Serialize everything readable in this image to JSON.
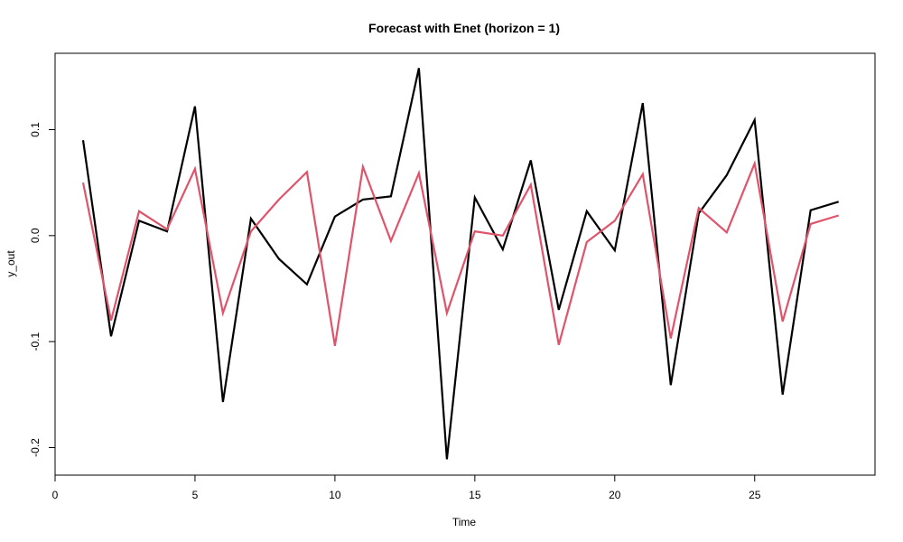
{
  "chart_data": {
    "type": "line",
    "title": "Forecast with Enet (horizon = 1)",
    "xlabel": "Time",
    "ylabel": "y_out",
    "xlim": [
      0,
      29.3
    ],
    "ylim": [
      -0.226,
      0.172
    ],
    "x_ticks": [
      0,
      5,
      10,
      15,
      20,
      25
    ],
    "y_ticks": [
      -0.2,
      -0.1,
      0.0,
      0.1
    ],
    "y_tick_labels": [
      "-0.2",
      "-0.1",
      "0.0",
      "0.1"
    ],
    "grid": false,
    "legend": "none",
    "x": [
      1,
      2,
      3,
      4,
      5,
      6,
      7,
      8,
      9,
      10,
      11,
      12,
      13,
      14,
      15,
      16,
      17,
      18,
      19,
      20,
      21,
      22,
      23,
      24,
      25,
      26,
      27,
      28
    ],
    "series": [
      {
        "color": "#000000",
        "values": [
          0.09,
          -0.095,
          0.014,
          0.004,
          0.122,
          -0.157,
          0.016,
          -0.022,
          -0.046,
          0.018,
          0.034,
          0.037,
          0.158,
          -0.211,
          0.036,
          -0.013,
          0.071,
          -0.07,
          0.023,
          -0.014,
          0.125,
          -0.141,
          0.021,
          0.057,
          0.109,
          -0.15,
          0.024,
          0.032
        ]
      },
      {
        "color": "#DF536B",
        "values": [
          0.05,
          -0.08,
          0.023,
          0.006,
          0.063,
          -0.073,
          0.004,
          0.034,
          0.06,
          -0.104,
          0.065,
          -0.005,
          0.059,
          -0.073,
          0.004,
          0.0,
          0.048,
          -0.103,
          -0.006,
          0.014,
          0.058,
          -0.097,
          0.026,
          0.003,
          0.068,
          -0.081,
          0.011,
          0.019
        ]
      }
    ]
  }
}
